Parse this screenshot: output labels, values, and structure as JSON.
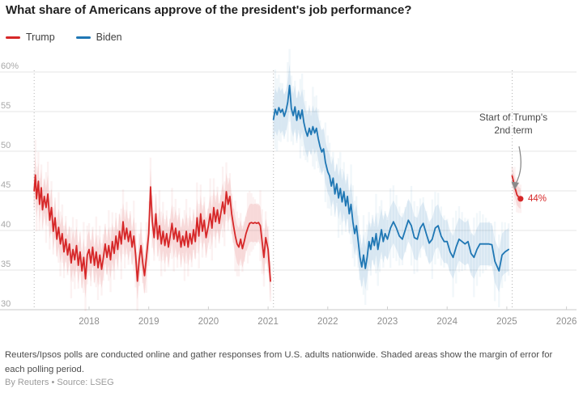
{
  "title": "What share of Americans approve of the president's job performance?",
  "legend": {
    "trump": {
      "label": "Trump",
      "color": "#d62728"
    },
    "biden": {
      "label": "Biden",
      "color": "#1f77b4"
    }
  },
  "annotation": {
    "line1": "Start of Trump's",
    "line2": "2nd term"
  },
  "endpoint_label": "44%",
  "footnote": "Reuters/Ipsos polls are conducted online and gather responses from U.S. adults nationwide. Shaded areas show the margin of error for each polling period.",
  "byline": "By Reuters • Source: LSEG",
  "chart_data": {
    "type": "line",
    "title": "What share of Americans approve of the president's job performance?",
    "xlabel": "",
    "ylabel": "",
    "y_unit": "%",
    "x_range": [
      2017,
      2026.2
    ],
    "y_range": [
      30,
      60
    ],
    "grid": "horizontal",
    "legend_position": "top-left",
    "y_ticks": [
      {
        "label": "60%",
        "value": 60
      },
      {
        "label": "55",
        "value": 55
      },
      {
        "label": "50",
        "value": 50
      },
      {
        "label": "45",
        "value": 45
      },
      {
        "label": "40",
        "value": 40
      },
      {
        "label": "35",
        "value": 35
      },
      {
        "label": "30",
        "value": 30
      }
    ],
    "x_ticks": [
      {
        "label": "2018",
        "value": 2018
      },
      {
        "label": "2019",
        "value": 2019
      },
      {
        "label": "2020",
        "value": 2020
      },
      {
        "label": "2021",
        "value": 2021
      },
      {
        "label": "2022",
        "value": 2022
      },
      {
        "label": "2023",
        "value": 2023
      },
      {
        "label": "2024",
        "value": 2024
      },
      {
        "label": "2025",
        "value": 2025
      },
      {
        "label": "2026",
        "value": 2026
      }
    ],
    "term_start_vlines": [
      2017.08,
      2021.09,
      2025.09
    ],
    "series": [
      {
        "name": "Trump (1st term)",
        "color": "#d62728",
        "band": 2.4,
        "endpoint_dot": false,
        "points": [
          [
            2017.08,
            45.0
          ],
          [
            2017.1,
            47.0
          ],
          [
            2017.12,
            44.0
          ],
          [
            2017.15,
            46.2
          ],
          [
            2017.17,
            43.3
          ],
          [
            2017.2,
            45.4
          ],
          [
            2017.22,
            42.6
          ],
          [
            2017.25,
            44.3
          ],
          [
            2017.28,
            42.9
          ],
          [
            2017.31,
            44.6
          ],
          [
            2017.34,
            41.3
          ],
          [
            2017.37,
            42.9
          ],
          [
            2017.4,
            39.9
          ],
          [
            2017.43,
            41.6
          ],
          [
            2017.46,
            38.9
          ],
          [
            2017.49,
            40.4
          ],
          [
            2017.52,
            38.3
          ],
          [
            2017.55,
            39.6
          ],
          [
            2017.58,
            37.3
          ],
          [
            2017.61,
            38.9
          ],
          [
            2017.64,
            36.9
          ],
          [
            2017.67,
            38.3
          ],
          [
            2017.7,
            35.9
          ],
          [
            2017.73,
            37.6
          ],
          [
            2017.76,
            36.3
          ],
          [
            2017.79,
            38.1
          ],
          [
            2017.82,
            35.6
          ],
          [
            2017.85,
            37.3
          ],
          [
            2017.88,
            34.9
          ],
          [
            2017.91,
            36.6
          ],
          [
            2017.94,
            33.9
          ],
          [
            2017.97,
            36.9
          ],
          [
            2018.0,
            37.6
          ],
          [
            2018.03,
            35.9
          ],
          [
            2018.06,
            37.9
          ],
          [
            2018.09,
            35.6
          ],
          [
            2018.12,
            37.3
          ],
          [
            2018.15,
            35.3
          ],
          [
            2018.18,
            36.9
          ],
          [
            2018.21,
            35.1
          ],
          [
            2018.24,
            36.6
          ],
          [
            2018.27,
            38.3
          ],
          [
            2018.3,
            36.6
          ],
          [
            2018.33,
            38.1
          ],
          [
            2018.36,
            36.3
          ],
          [
            2018.39,
            38.6
          ],
          [
            2018.42,
            37.1
          ],
          [
            2018.45,
            39.3
          ],
          [
            2018.48,
            37.6
          ],
          [
            2018.51,
            39.9
          ],
          [
            2018.54,
            38.3
          ],
          [
            2018.57,
            41.1
          ],
          [
            2018.6,
            38.9
          ],
          [
            2018.63,
            40.3
          ],
          [
            2018.66,
            38.6
          ],
          [
            2018.69,
            39.9
          ],
          [
            2018.72,
            37.9
          ],
          [
            2018.75,
            39.3
          ],
          [
            2018.78,
            36.9
          ],
          [
            2018.81,
            33.6
          ],
          [
            2018.84,
            36.3
          ],
          [
            2018.87,
            38.1
          ],
          [
            2018.9,
            35.9
          ],
          [
            2018.93,
            34.3
          ],
          [
            2018.96,
            36.6
          ],
          [
            2019.0,
            39.6
          ],
          [
            2019.03,
            45.5
          ],
          [
            2019.06,
            41.1
          ],
          [
            2019.09,
            39.1
          ],
          [
            2019.12,
            42.1
          ],
          [
            2019.15,
            38.9
          ],
          [
            2019.18,
            40.6
          ],
          [
            2019.21,
            38.3
          ],
          [
            2019.24,
            39.9
          ],
          [
            2019.27,
            38.1
          ],
          [
            2019.3,
            39.6
          ],
          [
            2019.33,
            37.9
          ],
          [
            2019.36,
            39.3
          ],
          [
            2019.39,
            40.9
          ],
          [
            2019.42,
            38.9
          ],
          [
            2019.45,
            40.3
          ],
          [
            2019.48,
            38.6
          ],
          [
            2019.51,
            39.9
          ],
          [
            2019.54,
            37.9
          ],
          [
            2019.57,
            39.3
          ],
          [
            2019.6,
            38.1
          ],
          [
            2019.63,
            39.9
          ],
          [
            2019.66,
            37.9
          ],
          [
            2019.69,
            39.6
          ],
          [
            2019.72,
            38.3
          ],
          [
            2019.75,
            40.1
          ],
          [
            2019.78,
            38.6
          ],
          [
            2019.81,
            41.6
          ],
          [
            2019.84,
            39.3
          ],
          [
            2019.87,
            42.1
          ],
          [
            2019.9,
            39.9
          ],
          [
            2019.93,
            41.3
          ],
          [
            2019.96,
            39.1
          ],
          [
            2020.0,
            40.6
          ],
          [
            2020.03,
            42.1
          ],
          [
            2020.06,
            40.3
          ],
          [
            2020.09,
            42.9
          ],
          [
            2020.12,
            41.1
          ],
          [
            2020.15,
            42.6
          ],
          [
            2020.18,
            40.9
          ],
          [
            2020.21,
            42.3
          ],
          [
            2020.24,
            43.6
          ],
          [
            2020.27,
            42.1
          ],
          [
            2020.3,
            44.9
          ],
          [
            2020.33,
            43.3
          ],
          [
            2020.36,
            44.3
          ],
          [
            2020.39,
            42.1
          ],
          [
            2020.42,
            40.6
          ],
          [
            2020.45,
            39.3
          ],
          [
            2020.48,
            38.3
          ],
          [
            2020.51,
            37.9
          ],
          [
            2020.54,
            38.9
          ],
          [
            2020.57,
            37.7
          ],
          [
            2020.6,
            38.6
          ],
          [
            2020.63,
            39.6
          ],
          [
            2020.66,
            40.3
          ],
          [
            2020.69,
            40.9
          ],
          [
            2020.72,
            41.0
          ],
          [
            2020.75,
            40.9
          ],
          [
            2020.78,
            41.0
          ],
          [
            2020.81,
            40.9
          ],
          [
            2020.84,
            41.0
          ],
          [
            2020.87,
            40.6
          ],
          [
            2020.9,
            38.6
          ],
          [
            2020.93,
            36.6
          ],
          [
            2020.96,
            39.1
          ],
          [
            2021.0,
            37.6
          ],
          [
            2021.04,
            33.6
          ]
        ]
      },
      {
        "name": "Biden",
        "color": "#1f77b4",
        "band": 2.7,
        "endpoint_dot": false,
        "points": [
          [
            2021.09,
            54.0
          ],
          [
            2021.12,
            55.3
          ],
          [
            2021.15,
            54.6
          ],
          [
            2021.18,
            55.5
          ],
          [
            2021.21,
            54.9
          ],
          [
            2021.24,
            55.3
          ],
          [
            2021.27,
            54.4
          ],
          [
            2021.3,
            55.1
          ],
          [
            2021.33,
            56.2
          ],
          [
            2021.36,
            58.3
          ],
          [
            2021.39,
            55.4
          ],
          [
            2021.42,
            54.5
          ],
          [
            2021.45,
            55.6
          ],
          [
            2021.48,
            53.9
          ],
          [
            2021.51,
            55.1
          ],
          [
            2021.54,
            54.1
          ],
          [
            2021.57,
            55.2
          ],
          [
            2021.6,
            53.6
          ],
          [
            2021.63,
            52.6
          ],
          [
            2021.66,
            51.9
          ],
          [
            2021.69,
            52.9
          ],
          [
            2021.72,
            52.1
          ],
          [
            2021.75,
            53.1
          ],
          [
            2021.78,
            52.3
          ],
          [
            2021.81,
            52.9
          ],
          [
            2021.84,
            51.6
          ],
          [
            2021.87,
            50.6
          ],
          [
            2021.9,
            49.9
          ],
          [
            2021.93,
            50.3
          ],
          [
            2021.96,
            48.6
          ],
          [
            2022.0,
            47.4
          ],
          [
            2022.03,
            46.9
          ],
          [
            2022.06,
            45.6
          ],
          [
            2022.09,
            46.6
          ],
          [
            2022.12,
            44.6
          ],
          [
            2022.15,
            45.9
          ],
          [
            2022.18,
            44.1
          ],
          [
            2022.21,
            45.3
          ],
          [
            2022.24,
            43.6
          ],
          [
            2022.27,
            44.9
          ],
          [
            2022.3,
            43.1
          ],
          [
            2022.33,
            44.3
          ],
          [
            2022.36,
            42.1
          ],
          [
            2022.39,
            43.3
          ],
          [
            2022.42,
            41.1
          ],
          [
            2022.45,
            39.6
          ],
          [
            2022.48,
            40.6
          ],
          [
            2022.51,
            38.6
          ],
          [
            2022.54,
            36.6
          ],
          [
            2022.57,
            35.4
          ],
          [
            2022.6,
            36.9
          ],
          [
            2022.63,
            35.2
          ],
          [
            2022.66,
            36.6
          ],
          [
            2022.69,
            38.6
          ],
          [
            2022.72,
            37.6
          ],
          [
            2022.75,
            39.1
          ],
          [
            2022.78,
            38.1
          ],
          [
            2022.81,
            39.6
          ],
          [
            2022.84,
            37.6
          ],
          [
            2022.87,
            38.9
          ],
          [
            2022.9,
            40.1
          ],
          [
            2022.93,
            38.6
          ],
          [
            2022.96,
            39.6
          ],
          [
            2023.0,
            38.9
          ],
          [
            2023.05,
            40.3
          ],
          [
            2023.1,
            41.1
          ],
          [
            2023.15,
            40.3
          ],
          [
            2023.2,
            39.3
          ],
          [
            2023.25,
            38.9
          ],
          [
            2023.3,
            40.1
          ],
          [
            2023.35,
            41.3
          ],
          [
            2023.4,
            40.6
          ],
          [
            2023.45,
            39.1
          ],
          [
            2023.5,
            38.9
          ],
          [
            2023.55,
            40.3
          ],
          [
            2023.6,
            40.9
          ],
          [
            2023.65,
            39.6
          ],
          [
            2023.7,
            38.4
          ],
          [
            2023.75,
            38.9
          ],
          [
            2023.8,
            40.3
          ],
          [
            2023.85,
            40.6
          ],
          [
            2023.9,
            39.3
          ],
          [
            2023.95,
            38.6
          ],
          [
            2024.0,
            38.6
          ],
          [
            2024.05,
            37.3
          ],
          [
            2024.1,
            36.6
          ],
          [
            2024.15,
            37.9
          ],
          [
            2024.2,
            38.9
          ],
          [
            2024.25,
            38.6
          ],
          [
            2024.3,
            38.3
          ],
          [
            2024.35,
            38.6
          ],
          [
            2024.4,
            37.1
          ],
          [
            2024.45,
            36.6
          ],
          [
            2024.5,
            37.6
          ],
          [
            2024.55,
            38.3
          ],
          [
            2024.6,
            38.3
          ],
          [
            2024.65,
            38.3
          ],
          [
            2024.7,
            38.3
          ],
          [
            2024.75,
            38.2
          ],
          [
            2024.8,
            36.1
          ],
          [
            2024.87,
            34.9
          ],
          [
            2024.92,
            36.9
          ],
          [
            2024.97,
            37.3
          ],
          [
            2025.03,
            37.6
          ]
        ]
      },
      {
        "name": "Trump (2nd term)",
        "color": "#d62728",
        "band": 1.3,
        "endpoint_dot": true,
        "endpoint_label": "44%",
        "points": [
          [
            2025.09,
            46.9
          ],
          [
            2025.13,
            45.6
          ],
          [
            2025.17,
            44.5
          ],
          [
            2025.2,
            44.2
          ],
          [
            2025.23,
            44.0
          ]
        ]
      }
    ]
  }
}
